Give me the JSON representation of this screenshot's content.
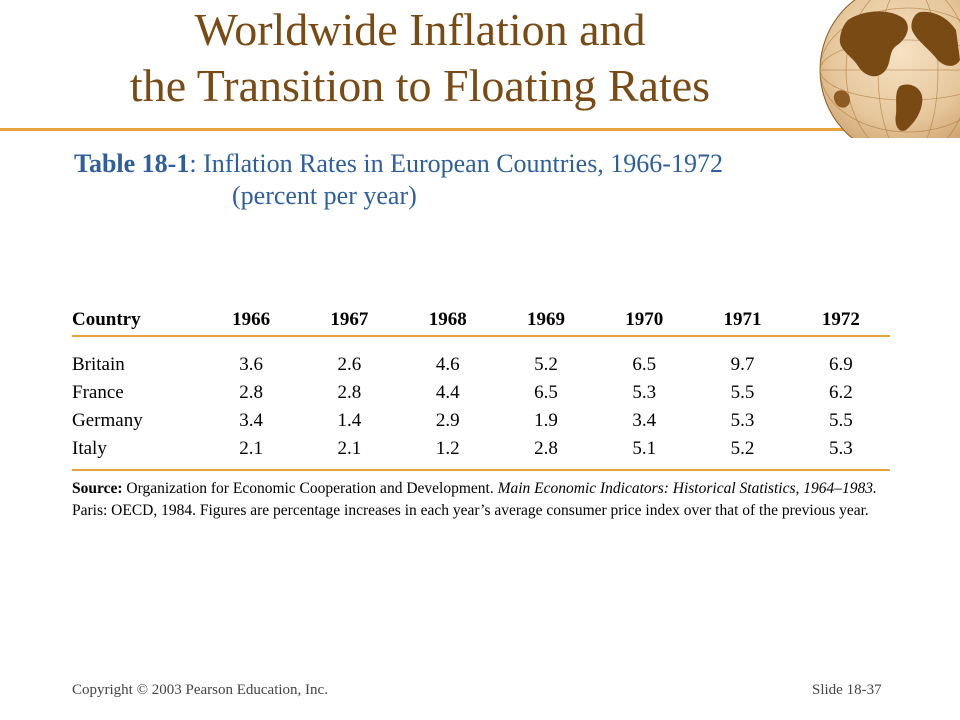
{
  "title": {
    "line1": "Worldwide Inflation and",
    "line2": "the Transition to Floating Rates"
  },
  "caption": {
    "label": "Table 18-1",
    "text": ": Inflation Rates in European Countries, 1966-1972",
    "units": "(percent per year)"
  },
  "table": {
    "columns": [
      "Country",
      "1966",
      "1967",
      "1968",
      "1969",
      "1970",
      "1971",
      "1972"
    ],
    "rows": [
      [
        "Britain",
        "3.6",
        "2.6",
        "4.6",
        "5.2",
        "6.5",
        "9.7",
        "6.9"
      ],
      [
        "France",
        "2.8",
        "2.8",
        "4.4",
        "6.5",
        "5.3",
        "5.5",
        "6.2"
      ],
      [
        "Germany",
        "3.4",
        "1.4",
        "2.9",
        "1.9",
        "3.4",
        "5.3",
        "5.5"
      ],
      [
        "Italy",
        "2.1",
        "2.1",
        "1.2",
        "2.8",
        "5.1",
        "5.2",
        "5.3"
      ]
    ]
  },
  "source": {
    "label": "Source:",
    "text1": "Organization for Economic Cooperation and Development.",
    "italic": "Main Economic Indicators: Historical Statistics, 1964–1983.",
    "text2": "Paris: OECD, 1984. Figures are percentage increases in each year’s average consumer price index over that of the previous year."
  },
  "footer": {
    "copyright": "Copyright © 2003 Pearson Education, Inc.",
    "slide": "Slide 18-37"
  },
  "colors": {
    "title": "#7a4a14",
    "caption": "#2e5f9c",
    "rule": "#e8a33c"
  },
  "icons": {
    "logo": "globe-icon"
  }
}
